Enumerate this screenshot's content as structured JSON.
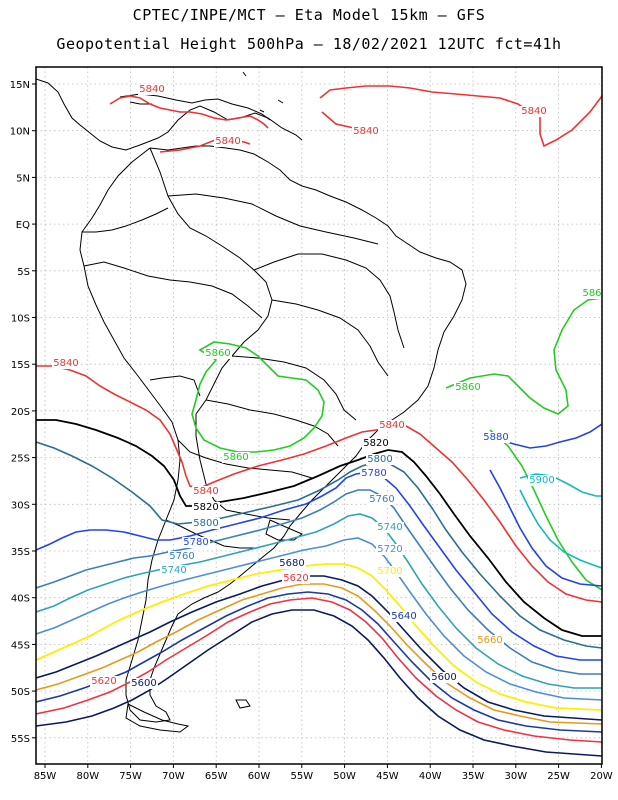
{
  "header": {
    "line1": "CPTEC/INPE/MCT –  Eta Model 15km – GFS",
    "line2": "Geopotential Height 500hPa – 18/02/2021 12UTC fct=41h"
  },
  "axes": {
    "lat_labels": [
      "15N",
      "10N",
      "5N",
      "EQ",
      "5S",
      "10S",
      "15S",
      "20S",
      "25S",
      "30S",
      "35S",
      "40S",
      "45S",
      "50S",
      "55S"
    ],
    "lon_labels": [
      "85W",
      "80W",
      "75W",
      "70W",
      "65W",
      "60W",
      "55W",
      "50W",
      "45W",
      "40W",
      "35W",
      "30W",
      "25W",
      "20W"
    ]
  },
  "colors": {
    "c5860": "#22cc22",
    "c5840": "#ee3333",
    "c5820": "#000000",
    "c5800": "#2a6f8f",
    "c5780": "#2244ee",
    "c5760": "#3a7fbf",
    "c5740": "#2ea4b4",
    "c5720": "#4c8fd8",
    "c5700": "#ffee00",
    "c5660": "#e69a1a",
    "c5640": "#1a3aa0",
    "c5620": "#ee3344",
    "c5600": "#0a1a60",
    "c5880": "#2244dd",
    "c5900": "#11bbbb"
  },
  "contour_labels": [
    {
      "id": "l5840a",
      "text": "5840",
      "color": "c5840"
    },
    {
      "id": "l5840b",
      "text": "5840",
      "color": "c5840"
    },
    {
      "id": "l5840c",
      "text": "5840",
      "color": "c5840"
    },
    {
      "id": "l5840d",
      "text": "5840",
      "color": "c5840"
    },
    {
      "id": "l5840e",
      "text": "5840",
      "color": "c5840"
    },
    {
      "id": "l5840f",
      "text": "5840",
      "color": "c5840"
    },
    {
      "id": "l5840g",
      "text": "5840",
      "color": "c5840"
    },
    {
      "id": "l5860a",
      "text": "5860",
      "color": "c5860"
    },
    {
      "id": "l5860b",
      "text": "5860",
      "color": "c5860"
    },
    {
      "id": "l5860c",
      "text": "5860",
      "color": "c5860"
    },
    {
      "id": "l5860d",
      "text": "586",
      "color": "c5860"
    },
    {
      "id": "l5820a",
      "text": "5820",
      "color": "c5820"
    },
    {
      "id": "l5820b",
      "text": "5820",
      "color": "c5820"
    },
    {
      "id": "l5800a",
      "text": "5800",
      "color": "c5800"
    },
    {
      "id": "l5800b",
      "text": "5800",
      "color": "c5800"
    },
    {
      "id": "l5780a",
      "text": "5780",
      "color": "c5780"
    },
    {
      "id": "l5780b",
      "text": "5780",
      "color": "c5780"
    },
    {
      "id": "l5760a",
      "text": "5760",
      "color": "c5760"
    },
    {
      "id": "l5760b",
      "text": "5760",
      "color": "c5760"
    },
    {
      "id": "l5740a",
      "text": "5740",
      "color": "c5740"
    },
    {
      "id": "l5740b",
      "text": "5740",
      "color": "c5740"
    },
    {
      "id": "l5720a",
      "text": "5720",
      "color": "c5720"
    },
    {
      "id": "l5700a",
      "text": "5700",
      "color": "c5700"
    },
    {
      "id": "l5680a",
      "text": "5680",
      "color": "c5600"
    },
    {
      "id": "l5660a",
      "text": "5660",
      "color": "c5660"
    },
    {
      "id": "l5640a",
      "text": "5640",
      "color": "c5640"
    },
    {
      "id": "l5620a",
      "text": "5620",
      "color": "c5620"
    },
    {
      "id": "l5620b",
      "text": "5620",
      "color": "c5620"
    },
    {
      "id": "l5600a",
      "text": "5600",
      "color": "c5600"
    },
    {
      "id": "l5600b",
      "text": "5600",
      "color": "c5600"
    },
    {
      "id": "l5880a",
      "text": "5880",
      "color": "c5880"
    },
    {
      "id": "l5900a",
      "text": "5900",
      "color": "c5900"
    }
  ]
}
